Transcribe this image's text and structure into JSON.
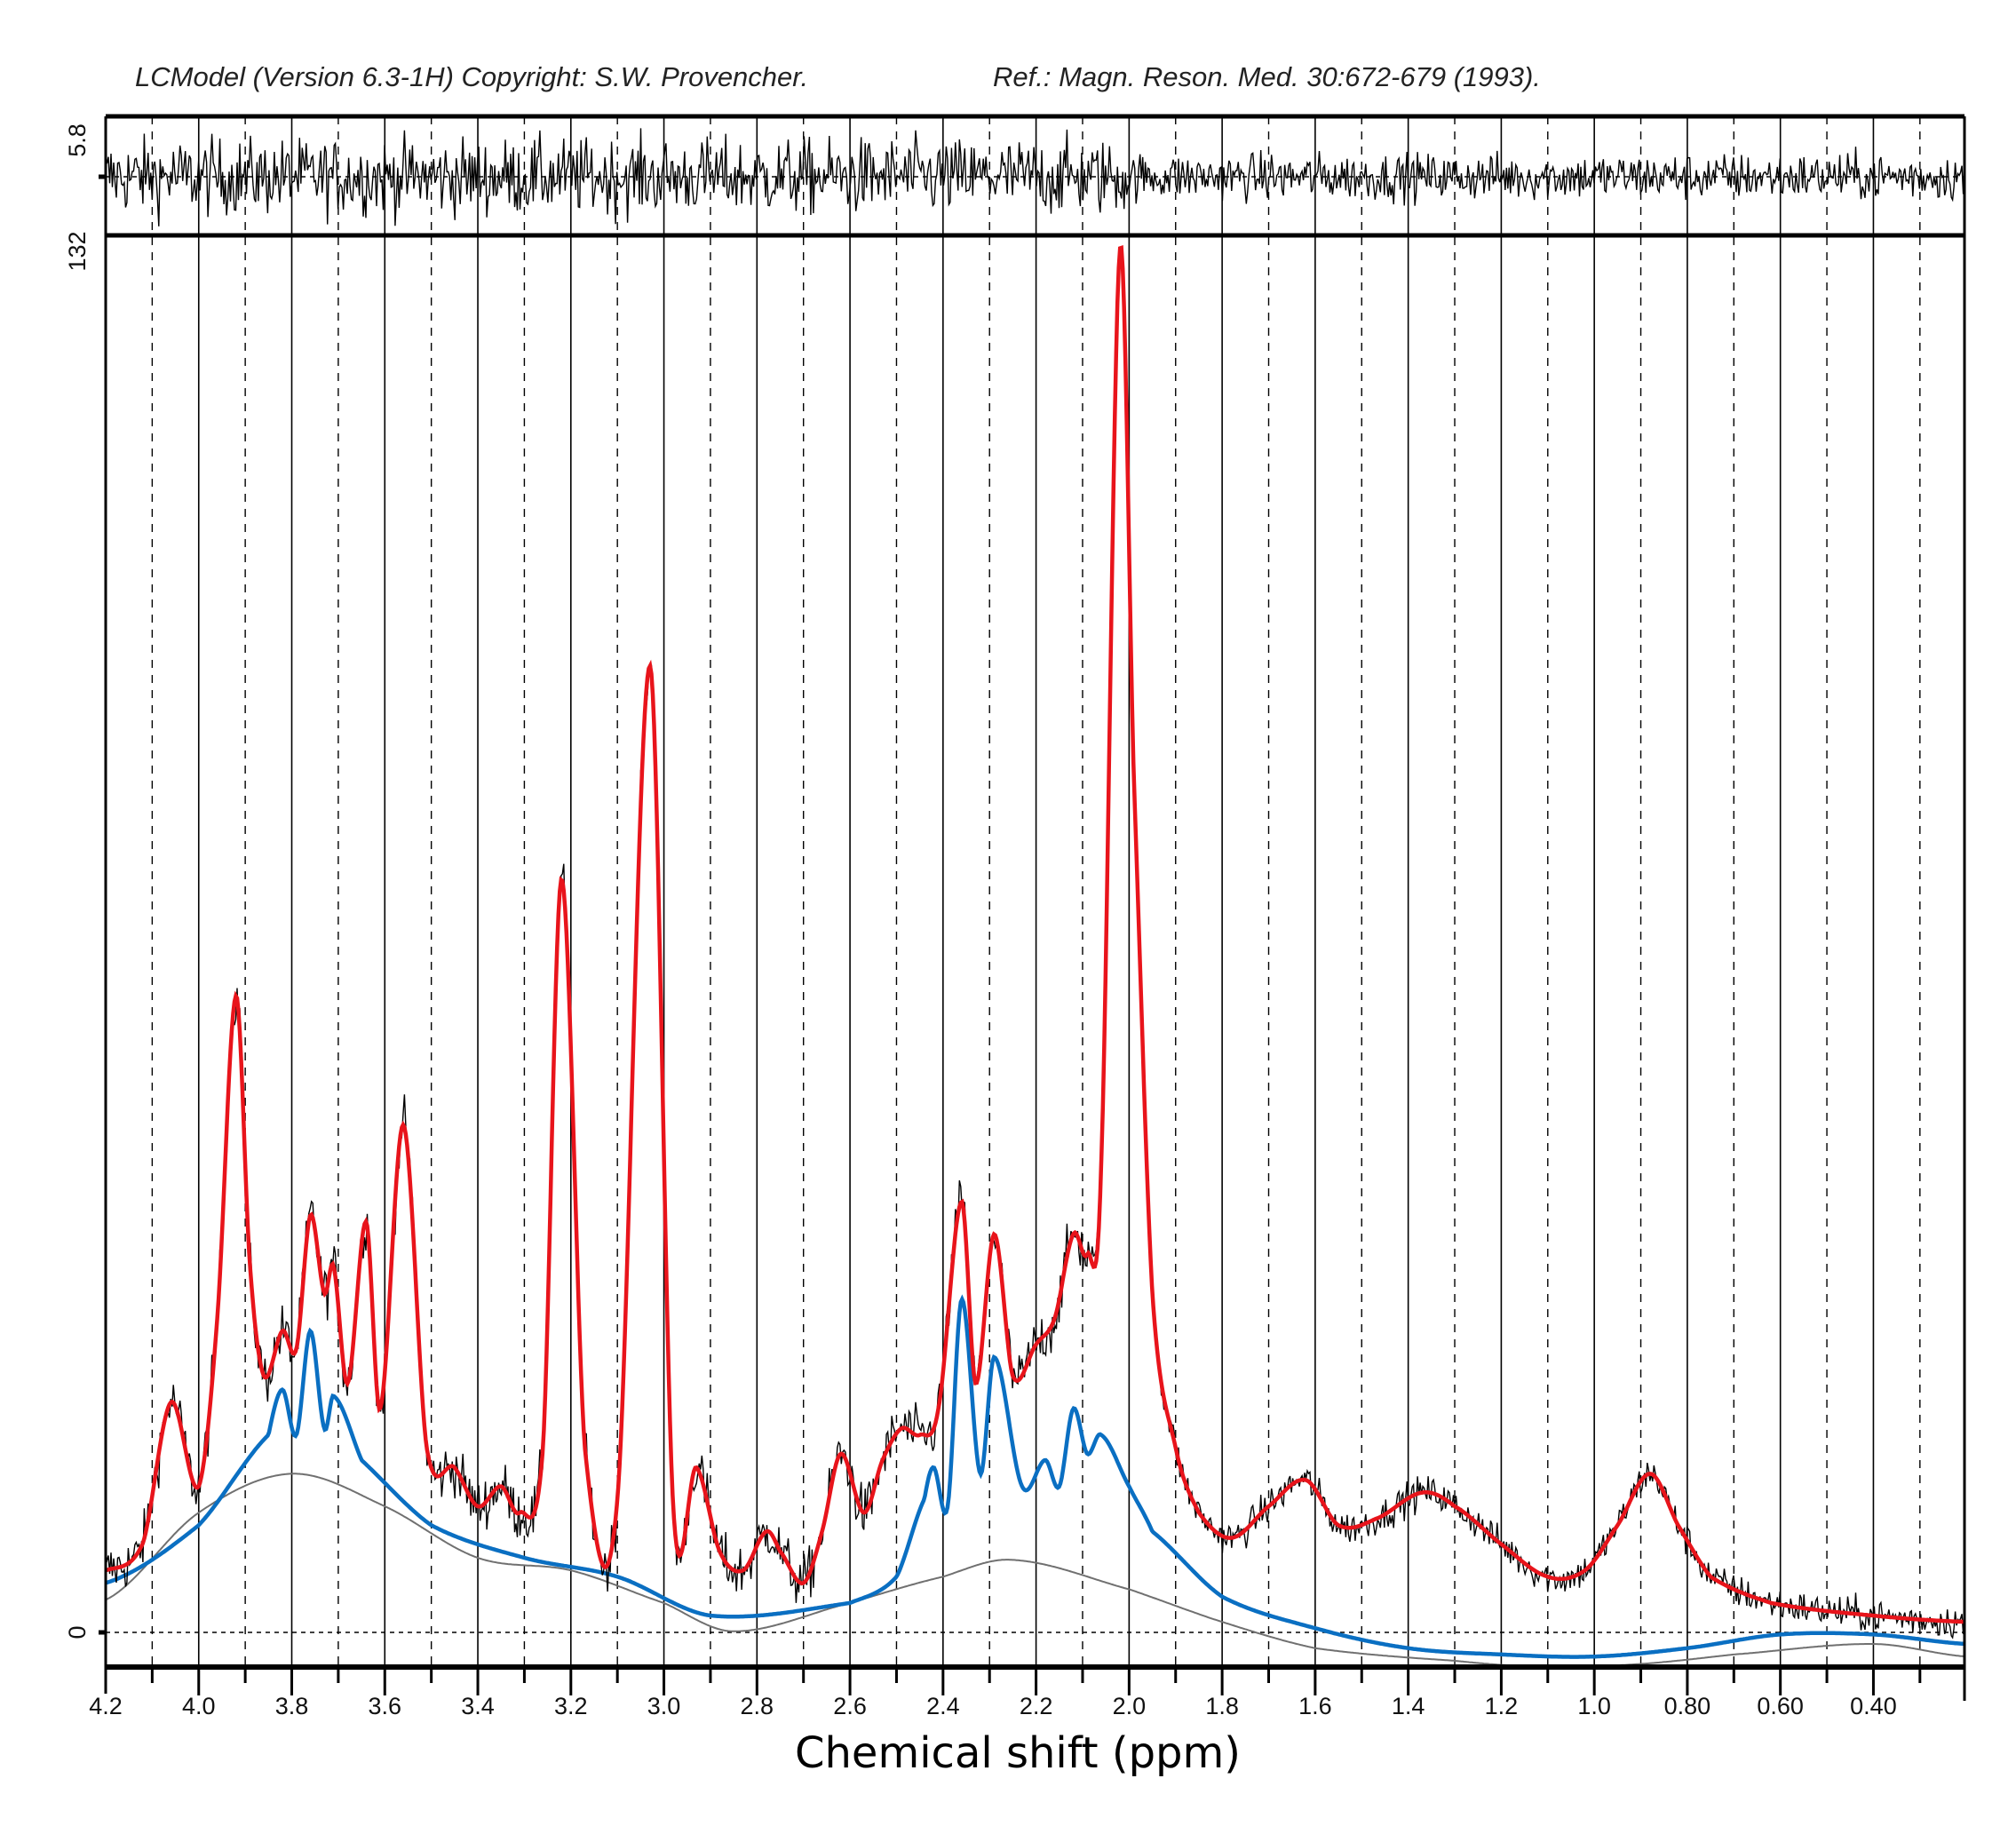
{
  "header": {
    "copyright": "LCModel (Version 6.3-1H) Copyright: S.W. Provencher.",
    "reference": "Ref.: Magn. Reson. Med. 30:672-679 (1993)."
  },
  "chart_data": {
    "type": "line",
    "title": "",
    "xlabel": "Chemical shift (ppm)",
    "ylabel": "",
    "xlim": [
      4.2,
      0.2
    ],
    "x_reversed": true,
    "ylim": [
      -3.3,
      132
    ],
    "x_tick_labels": [
      "4.2",
      "4.0",
      "3.8",
      "3.6",
      "3.4",
      "3.2",
      "3.0",
      "2.8",
      "2.6",
      "2.4",
      "2.2",
      "2.0",
      "1.8",
      "1.6",
      "1.4",
      "1.2",
      "1.0",
      "0.80",
      "0.60",
      "0.40"
    ],
    "x_tick_values": [
      4.2,
      4.0,
      3.8,
      3.6,
      3.4,
      3.2,
      3.0,
      2.8,
      2.6,
      2.4,
      2.2,
      2.0,
      1.8,
      1.6,
      1.4,
      1.2,
      1.0,
      0.8,
      0.6,
      0.4
    ],
    "y_tick_labels": {
      "main_top": "132",
      "main_zero": "0",
      "residual_top": "5.8"
    },
    "residual_ylim": [
      -5.8,
      5.8
    ],
    "grid": "vertical: solid every 0.2 ppm, dashed at odd 0.1 ppm; dashed zero line",
    "colors": {
      "data": "#000000",
      "fit": "#e8141b",
      "component": "#0a6fc2",
      "baseline": "#707070"
    },
    "series": [
      {
        "key": "fit",
        "color": "#e8141b",
        "x": [
          4.2,
          4.12,
          4.06,
          4.0,
          3.96,
          3.92,
          3.89,
          3.86,
          3.82,
          3.79,
          3.76,
          3.73,
          3.71,
          3.68,
          3.64,
          3.61,
          3.56,
          3.51,
          3.45,
          3.4,
          3.35,
          3.31,
          3.26,
          3.22,
          3.17,
          3.1,
          3.03,
          2.98,
          2.93,
          2.88,
          2.83,
          2.78,
          2.75,
          2.7,
          2.66,
          2.62,
          2.57,
          2.53,
          2.49,
          2.45,
          2.41,
          2.36,
          2.33,
          2.29,
          2.25,
          2.2,
          2.16,
          2.12,
          2.09,
          2.06,
          2.02,
          1.99,
          1.95,
          1.9,
          1.85,
          1.78,
          1.7,
          1.62,
          1.55,
          1.47,
          1.37,
          1.3,
          1.2,
          1.1,
          1.02,
          0.95,
          0.88,
          0.82,
          0.75,
          0.62,
          0.4,
          0.2
        ],
        "y": [
          5.9,
          8.5,
          21.9,
          13.9,
          30,
          60.6,
          35,
          24.4,
          28.7,
          27,
          39.7,
          32.3,
          34.8,
          23.7,
          39.1,
          21.3,
          48.3,
          17.6,
          15.7,
          12,
          13.9,
          11.4,
          17.6,
          71.7,
          17.6,
          12.7,
          92,
          12,
          15.7,
          7.7,
          5.9,
          9.6,
          7.7,
          4.7,
          9.6,
          17,
          11.4,
          16.4,
          19.4,
          18.8,
          21.3,
          41,
          23.7,
          37.9,
          24.4,
          27.4,
          29.9,
          37.9,
          36,
          44.6,
          131.4,
          81.5,
          32.3,
          17.6,
          11.4,
          9,
          12,
          14.5,
          10.2,
          10.8,
          13.3,
          12,
          8.4,
          5.3,
          5.9,
          10.2,
          15.1,
          10.2,
          5.3,
          2.8,
          1.6,
          1
        ]
      },
      {
        "key": "component",
        "color": "#0a6fc2",
        "x": [
          4.2,
          4.0,
          3.85,
          3.82,
          3.79,
          3.76,
          3.73,
          3.71,
          3.65,
          3.5,
          3.3,
          3.1,
          2.9,
          2.6,
          2.5,
          2.44,
          2.42,
          2.39,
          2.36,
          2.32,
          2.29,
          2.23,
          2.18,
          2.15,
          2.12,
          2.09,
          2.06,
          2.0,
          1.95,
          1.8,
          1.6,
          1.4,
          1.2,
          1.0,
          0.8,
          0.6,
          0.4,
          0.2
        ],
        "y": [
          4.7,
          10.2,
          18.8,
          23.1,
          18.8,
          28.7,
          19.4,
          22.5,
          16.4,
          10.2,
          7.1,
          5.3,
          1.6,
          2.8,
          5.3,
          12.7,
          15.7,
          12,
          31.7,
          15.1,
          26.2,
          13.9,
          16.4,
          13.9,
          21.3,
          17,
          18.8,
          13.9,
          9.6,
          3.4,
          0.4,
          -1.5,
          -2.1,
          -2.3,
          -1.5,
          -0.2,
          -0.2,
          -1.1
        ]
      },
      {
        "key": "baseline",
        "color": "#707070",
        "x": [
          4.2,
          4.0,
          3.8,
          3.6,
          3.4,
          3.2,
          3.0,
          2.85,
          2.6,
          2.4,
          2.25,
          2.0,
          1.8,
          1.6,
          1.3,
          1.1,
          0.9,
          0.7,
          0.4,
          0.2
        ],
        "y": [
          3.1,
          11.4,
          15.1,
          12,
          7.1,
          5.9,
          2.8,
          0.1,
          2.8,
          5.3,
          6.9,
          4.1,
          1,
          -1.5,
          -2.7,
          -3.3,
          -3,
          -2.1,
          -1.1,
          -2.3
        ]
      }
    ]
  }
}
